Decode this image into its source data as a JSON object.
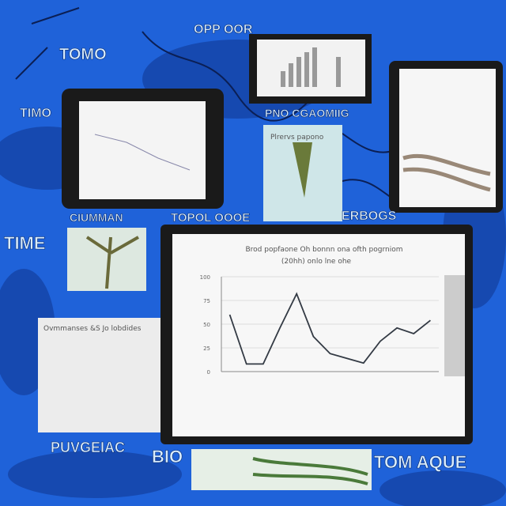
{
  "labels": [
    "TOMO",
    "TIME",
    "BIO",
    "TOM AQUE",
    "PUVGEIAC",
    "ERBOGS",
    "TOPOL OOOE",
    "CIUMMAN",
    "TIMO",
    "PNO CGAOMIIG",
    "OPP OOR",
    "Plrervs papono",
    "Ovmmanses &S Jo lobdides"
  ],
  "chart_data": {
    "type": "line",
    "title": "Brod popfaone Oh bonnn ona ofth pogrniom",
    "subtitle": "(20hh) onlo lne ohe",
    "categories": [
      null,
      null,
      null,
      null,
      null,
      null,
      null,
      null,
      null,
      null,
      null,
      null,
      null
    ],
    "series": [
      {
        "name": null,
        "color": "#333a44",
        "values": [
          60,
          8,
          8,
          46,
          82,
          37,
          19,
          14,
          9,
          32,
          46,
          40,
          54
        ]
      }
    ],
    "ylim": [
      0,
      100
    ],
    "yticks": [
      0,
      25,
      50,
      75,
      100
    ],
    "grid": true
  }
}
